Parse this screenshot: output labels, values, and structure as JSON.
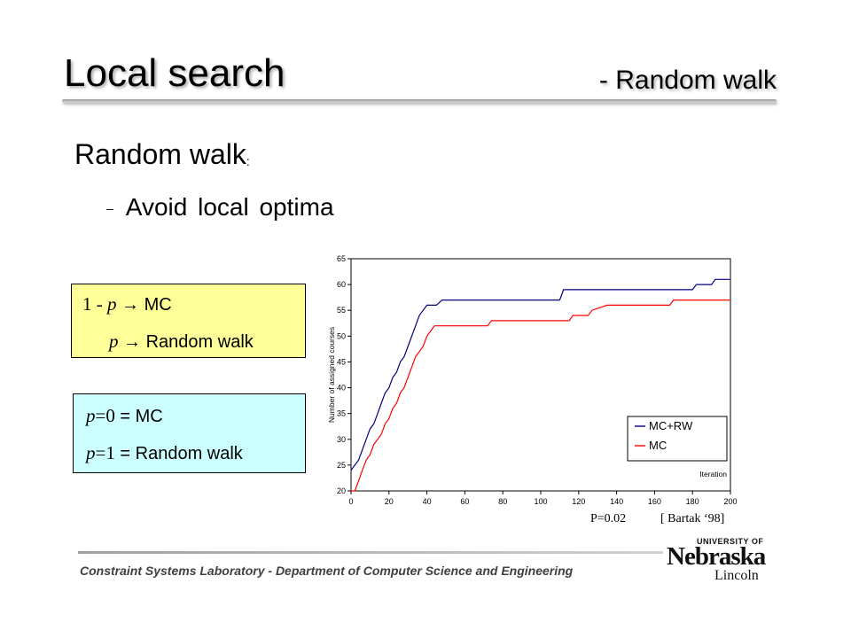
{
  "slide": {
    "title": "Local search",
    "subtitle": "- Random walk",
    "heading": "Random walk",
    "heading_colon": ":",
    "bullet_dash": "–",
    "bullet": "Avoid local optima"
  },
  "box_probabilities": {
    "line1_prefix": "1 - ",
    "line1_var": "p",
    "line1_suffix": " → MC",
    "line2_var": "p",
    "line2_suffix": " → Random walk"
  },
  "box_extremes": {
    "line1_var": "p",
    "line1_val": "=0",
    "line1_suffix": " = MC",
    "line2_var": "p",
    "line2_val": "=1",
    "line2_suffix": " = Random walk"
  },
  "captions": {
    "p_value": "P=0.02",
    "reference": "[ Bartak ‘98]"
  },
  "footer": {
    "text": "Constraint Systems Laboratory - Department of Computer Science and Engineering",
    "logo_university": "UNIVERSITY OF",
    "logo_name": "Nebraska",
    "logo_campus": "Lincoln"
  },
  "colors": {
    "box_yellow": "#ffff99",
    "box_blue": "#ccffff",
    "series_mc_rw": "#000080",
    "series_mc": "#ff0000"
  },
  "chart_data": {
    "type": "line",
    "title": "",
    "xlabel": "Iteration",
    "ylabel": "Number of assigned courses",
    "xlim": [
      0,
      200
    ],
    "ylim": [
      20,
      65
    ],
    "xticks": [
      0,
      20,
      40,
      60,
      80,
      100,
      120,
      140,
      160,
      180,
      200
    ],
    "yticks": [
      20,
      25,
      30,
      35,
      40,
      45,
      50,
      55,
      60,
      65
    ],
    "grid": false,
    "legend": "bottom-right",
    "series": [
      {
        "name": "MC+RW",
        "color": "#000080",
        "points": [
          [
            0,
            24
          ],
          [
            2,
            25
          ],
          [
            4,
            26
          ],
          [
            6,
            28
          ],
          [
            8,
            30
          ],
          [
            10,
            32
          ],
          [
            12,
            33
          ],
          [
            14,
            35
          ],
          [
            16,
            37
          ],
          [
            18,
            39
          ],
          [
            20,
            40
          ],
          [
            22,
            42
          ],
          [
            24,
            43
          ],
          [
            26,
            45
          ],
          [
            28,
            46
          ],
          [
            30,
            48
          ],
          [
            32,
            50
          ],
          [
            34,
            52
          ],
          [
            36,
            54
          ],
          [
            38,
            55
          ],
          [
            40,
            56
          ],
          [
            45,
            56
          ],
          [
            48,
            57
          ],
          [
            60,
            57
          ],
          [
            100,
            57
          ],
          [
            110,
            57
          ],
          [
            112,
            59
          ],
          [
            150,
            59
          ],
          [
            180,
            59
          ],
          [
            182,
            60
          ],
          [
            190,
            60
          ],
          [
            192,
            61
          ],
          [
            200,
            61
          ]
        ]
      },
      {
        "name": "MC",
        "color": "#ff0000",
        "points": [
          [
            0,
            19
          ],
          [
            2,
            20
          ],
          [
            4,
            22
          ],
          [
            6,
            24
          ],
          [
            8,
            26
          ],
          [
            10,
            27
          ],
          [
            12,
            29
          ],
          [
            14,
            30
          ],
          [
            16,
            31
          ],
          [
            18,
            33
          ],
          [
            20,
            34
          ],
          [
            22,
            36
          ],
          [
            24,
            37
          ],
          [
            26,
            39
          ],
          [
            28,
            40
          ],
          [
            30,
            42
          ],
          [
            32,
            44
          ],
          [
            34,
            46
          ],
          [
            36,
            47
          ],
          [
            38,
            48
          ],
          [
            40,
            50
          ],
          [
            42,
            51
          ],
          [
            44,
            52
          ],
          [
            60,
            52
          ],
          [
            72,
            52
          ],
          [
            74,
            53
          ],
          [
            100,
            53
          ],
          [
            115,
            53
          ],
          [
            117,
            54
          ],
          [
            125,
            54
          ],
          [
            127,
            55
          ],
          [
            135,
            56
          ],
          [
            168,
            56
          ],
          [
            170,
            57
          ],
          [
            200,
            57
          ]
        ]
      }
    ]
  }
}
